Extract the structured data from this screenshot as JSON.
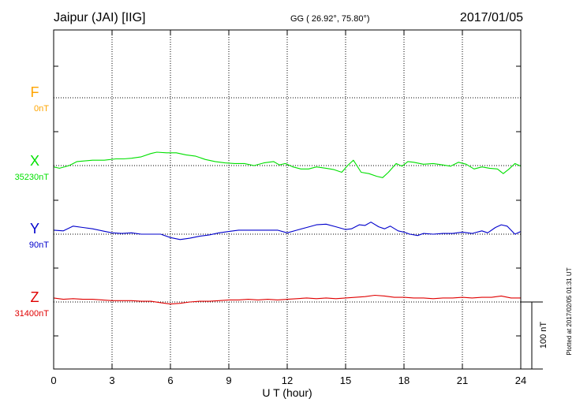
{
  "header": {
    "station": "Jaipur (JAI)  [IIG]",
    "coords": "GG ( 26.92°,  75.80°)",
    "date": "2017/01/05"
  },
  "footer_note": "Plotted at 2017/02/05 01:31  UT",
  "colors": {
    "F": "#ffa500",
    "X": "#00e000",
    "Y": "#0000cc",
    "Z": "#e00000",
    "grid": "#000000"
  },
  "chart_data": {
    "type": "line",
    "xlabel": "U T (hour)",
    "xlim": [
      0,
      24
    ],
    "x_ticks": [
      0,
      3,
      6,
      9,
      12,
      15,
      18,
      21,
      24
    ],
    "x_tick_labels": [
      "0",
      "3",
      "6",
      "9",
      "12",
      "15",
      "18",
      "21",
      "24"
    ],
    "scale_bar": {
      "label": "100 nT",
      "value_nT": 100
    },
    "channels": [
      {
        "key": "F",
        "name": "F",
        "baseline_label": "0nT",
        "baseline_nT": 0
      },
      {
        "key": "X",
        "name": "X",
        "baseline_label": "35230nT",
        "baseline_nT": 35230
      },
      {
        "key": "Y",
        "name": "Y",
        "baseline_label": "90nT",
        "baseline_nT": 90
      },
      {
        "key": "Z",
        "name": "Z",
        "baseline_label": "31400nT",
        "baseline_nT": 31400
      }
    ],
    "series": [
      {
        "name": "X",
        "x": [
          0,
          0.3,
          0.8,
          1.2,
          1.6,
          2.0,
          2.6,
          3.2,
          3.6,
          4.0,
          4.5,
          5.0,
          5.3,
          5.8,
          6.3,
          6.8,
          7.3,
          7.8,
          8.3,
          8.8,
          9.3,
          9.8,
          10.3,
          10.8,
          11.3,
          11.6,
          11.9,
          12.3,
          12.7,
          13.1,
          13.5,
          14.0,
          14.4,
          14.8,
          15.1,
          15.4,
          15.8,
          16.2,
          16.6,
          16.9,
          17.2,
          17.6,
          17.9,
          18.2,
          18.5,
          19.0,
          19.5,
          20.0,
          20.4,
          20.8,
          21.2,
          21.6,
          22.0,
          22.4,
          22.8,
          23.1,
          23.4,
          23.7,
          24.0
        ],
        "values": [
          35228,
          35226,
          35230,
          35236,
          35237,
          35238,
          35238,
          35240,
          35240,
          35241,
          35243,
          35248,
          35250,
          35249,
          35249,
          35246,
          35244,
          35239,
          35236,
          35234,
          35233,
          35233,
          35230,
          35234,
          35236,
          35231,
          35233,
          35228,
          35225,
          35225,
          35228,
          35226,
          35224,
          35220,
          35230,
          35238,
          35220,
          35218,
          35214,
          35212,
          35220,
          35233,
          35229,
          35236,
          35235,
          35232,
          35233,
          35231,
          35229,
          35235,
          35232,
          35225,
          35228,
          35226,
          35225,
          35218,
          35225,
          35233,
          35229
        ]
      },
      {
        "name": "Y",
        "x": [
          0,
          0.5,
          1.0,
          1.5,
          2.0,
          2.5,
          3.0,
          3.5,
          4.0,
          4.5,
          5.0,
          5.5,
          6.0,
          6.5,
          7.0,
          7.5,
          8.0,
          8.5,
          9.0,
          9.5,
          10.0,
          10.5,
          11.0,
          11.5,
          12.0,
          12.5,
          13.0,
          13.5,
          14.0,
          14.5,
          15.0,
          15.3,
          15.7,
          16.0,
          16.3,
          16.7,
          17.0,
          17.3,
          17.7,
          18.0,
          18.3,
          18.7,
          19.0,
          19.5,
          20.0,
          20.5,
          21.0,
          21.5,
          22.0,
          22.3,
          22.7,
          23.0,
          23.3,
          23.7,
          24.0
        ],
        "values": [
          96,
          95,
          102,
          100,
          98,
          95,
          92,
          91,
          92,
          90,
          90,
          90,
          85,
          82,
          84,
          87,
          89,
          92,
          94,
          96,
          96,
          96,
          96,
          96,
          92,
          96,
          100,
          104,
          105,
          101,
          97,
          98,
          104,
          103,
          108,
          101,
          98,
          102,
          95,
          93,
          90,
          88,
          91,
          90,
          91,
          91,
          93,
          91,
          95,
          92,
          100,
          104,
          102,
          90,
          94
        ]
      },
      {
        "name": "Z",
        "x": [
          0,
          0.5,
          1.0,
          1.5,
          2.0,
          2.5,
          3.0,
          3.5,
          4.0,
          4.5,
          5.0,
          5.5,
          6.0,
          6.5,
          7.0,
          7.5,
          8.0,
          8.5,
          9.0,
          9.5,
          10.0,
          10.5,
          11.0,
          11.5,
          12.0,
          12.5,
          13.0,
          13.5,
          14.0,
          14.5,
          15.0,
          15.5,
          16.0,
          16.5,
          17.0,
          17.5,
          18.0,
          18.5,
          19.0,
          19.5,
          20.0,
          20.5,
          21.0,
          21.5,
          22.0,
          22.5,
          23.0,
          23.5,
          24.0
        ],
        "values": [
          31406,
          31404,
          31405,
          31404,
          31404,
          31403,
          31402,
          31402,
          31402,
          31401,
          31401,
          31399,
          31397,
          31398,
          31400,
          31401,
          31401,
          31402,
          31403,
          31403,
          31404,
          31403,
          31404,
          31403,
          31404,
          31405,
          31406,
          31405,
          31406,
          31405,
          31406,
          31407,
          31408,
          31410,
          31409,
          31407,
          31407,
          31406,
          31406,
          31405,
          31406,
          31406,
          31407,
          31406,
          31407,
          31407,
          31409,
          31406,
          31406
        ]
      }
    ]
  }
}
